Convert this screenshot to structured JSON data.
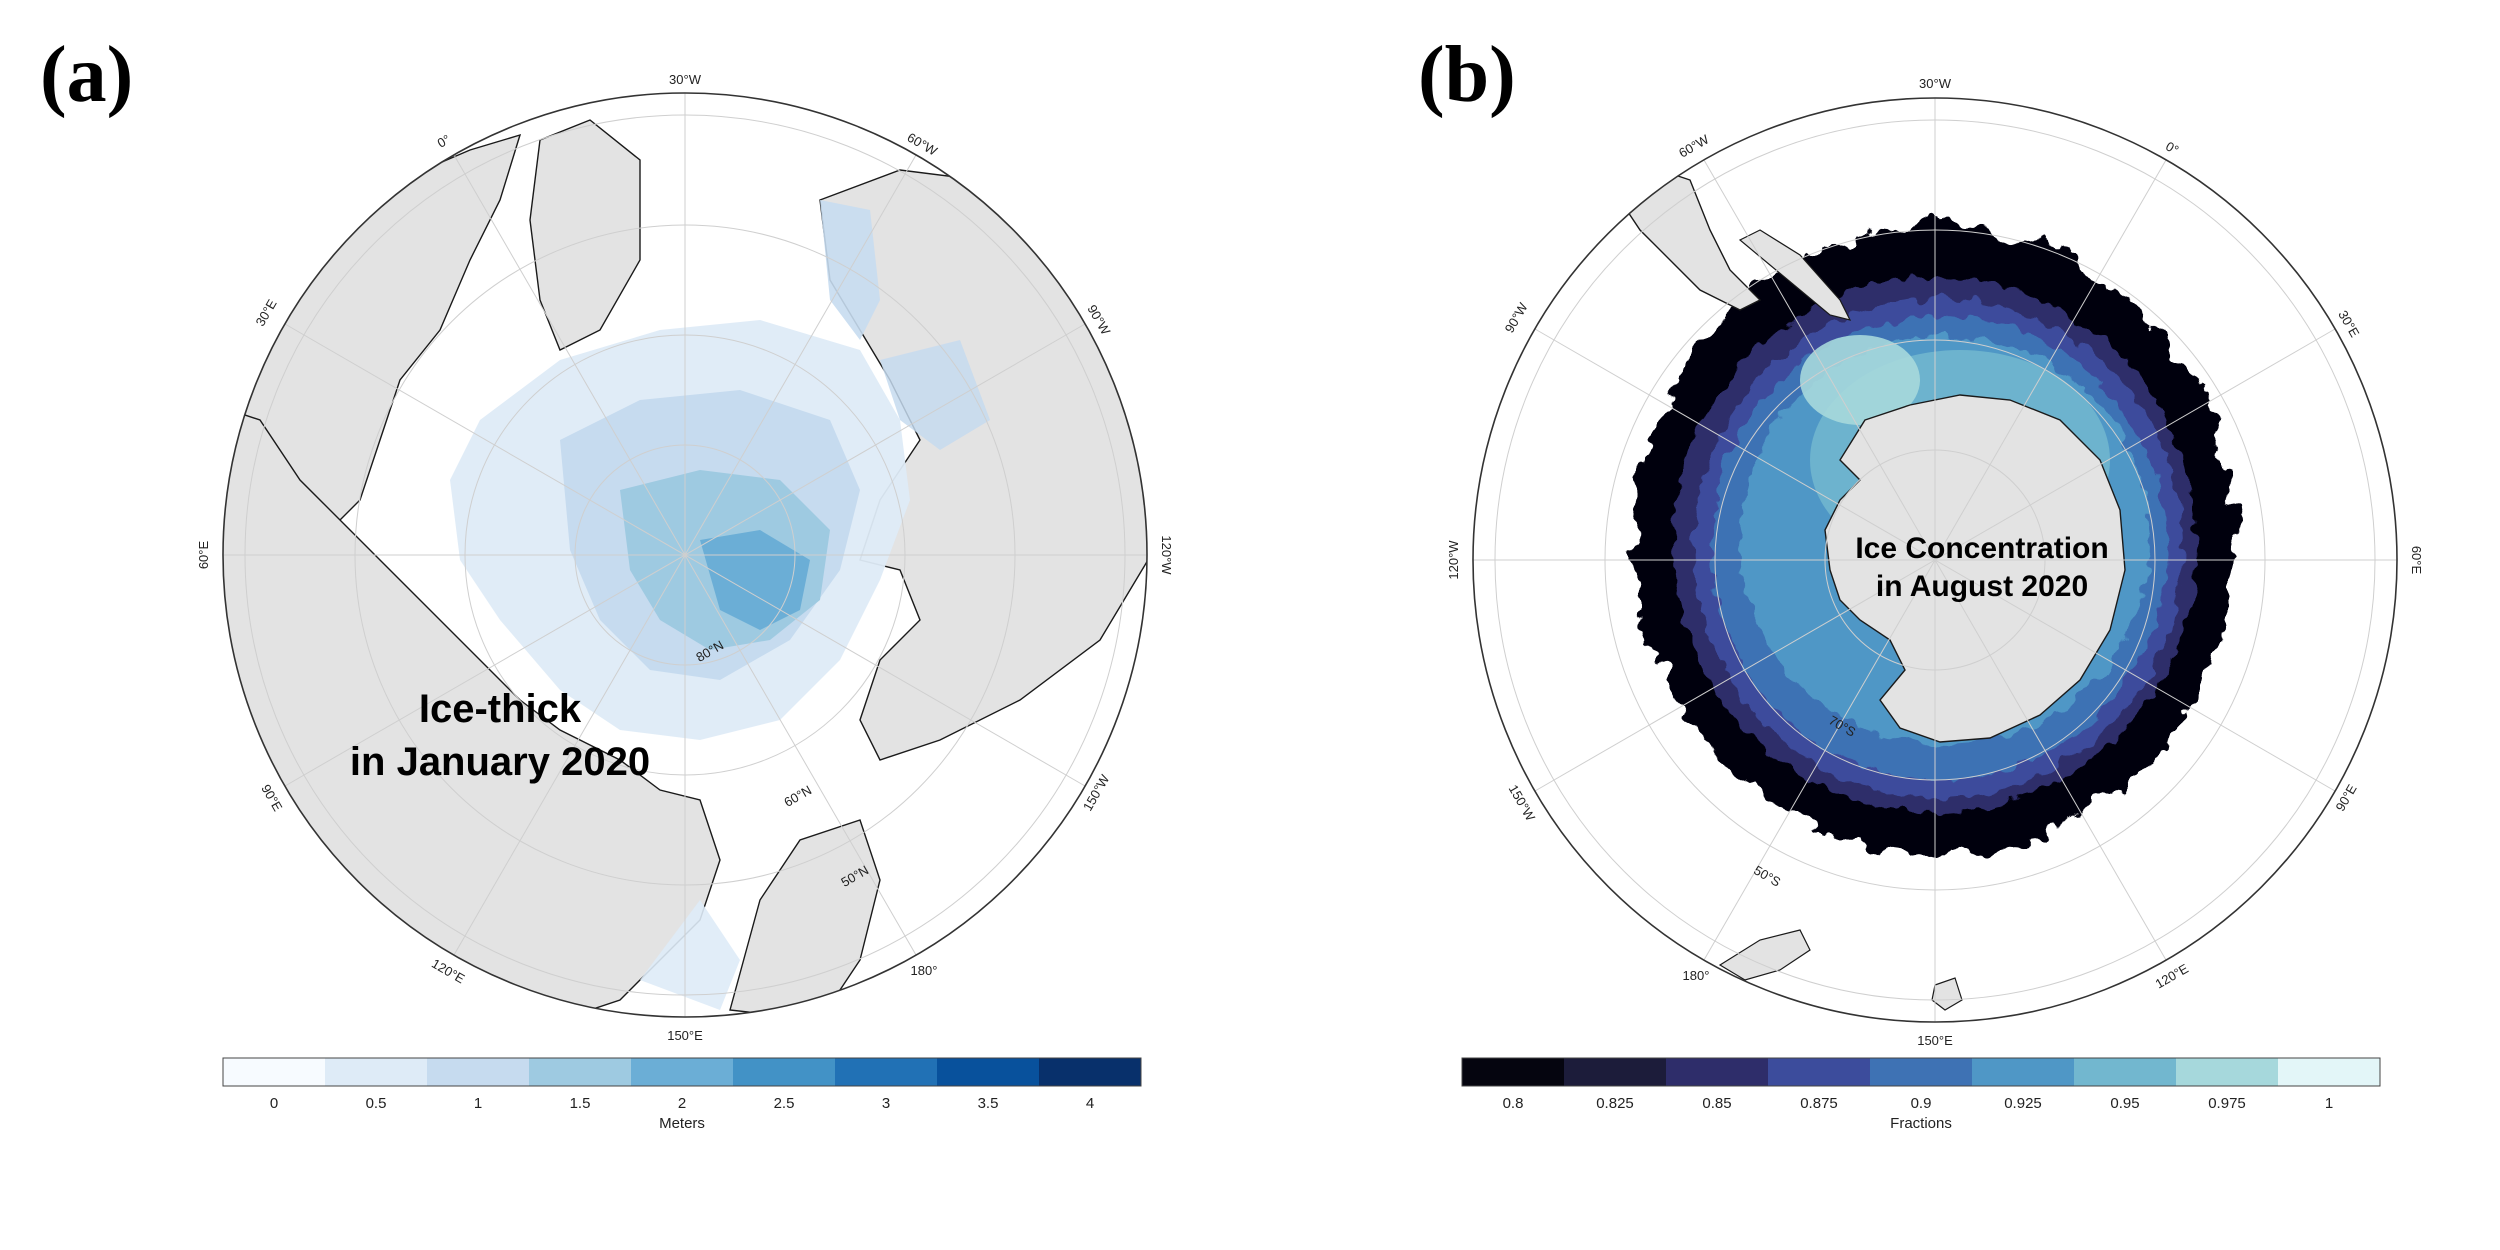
{
  "panel_a": {
    "label": "(a)",
    "title_line1": "Ice-thick",
    "title_line2": "in January 2020",
    "lon_labels": [
      "30°W",
      "60°W",
      "90°W",
      "120°W",
      "150°W",
      "180°",
      "150°E",
      "120°E",
      "90°E",
      "60°E",
      "30°E",
      "0°"
    ],
    "lat_labels": [
      "80°N",
      "60°N",
      "50°N"
    ],
    "colorbar": {
      "title": "Meters",
      "ticks": [
        "0",
        "0.5",
        "1",
        "1.5",
        "2",
        "2.5",
        "3",
        "3.5",
        "4"
      ],
      "colors": [
        "#f7fbff",
        "#deebf7",
        "#c6dbef",
        "#9ecae1",
        "#6baed6",
        "#4292c6",
        "#2171b5",
        "#08519c",
        "#08306b"
      ]
    }
  },
  "panel_b": {
    "label": "(b)",
    "title_line1": "Ice Concentration",
    "title_line2": "in August 2020",
    "lon_labels": [
      "30°W",
      "0°",
      "30°E",
      "60°E",
      "90°E",
      "120°E",
      "150°E",
      "180°",
      "150°W",
      "120°W",
      "90°W",
      "60°W"
    ],
    "lat_labels": [
      "70°S",
      "50°S"
    ],
    "colorbar": {
      "title": "Fractions",
      "ticks": [
        "0.8",
        "0.825",
        "0.85",
        "0.875",
        "0.9",
        "0.925",
        "0.95",
        "0.975",
        "1"
      ],
      "colors": [
        "#05050f",
        "#1c1c3a",
        "#2e2d6a",
        "#3c4c9c",
        "#3e72b4",
        "#4f97c6",
        "#72b7cf",
        "#a6d8dc",
        "#e3f6f8"
      ]
    }
  },
  "colors": {
    "land": "#e3e3e3",
    "coast": "#1a1a1a",
    "grid": "#cfcfcf"
  }
}
